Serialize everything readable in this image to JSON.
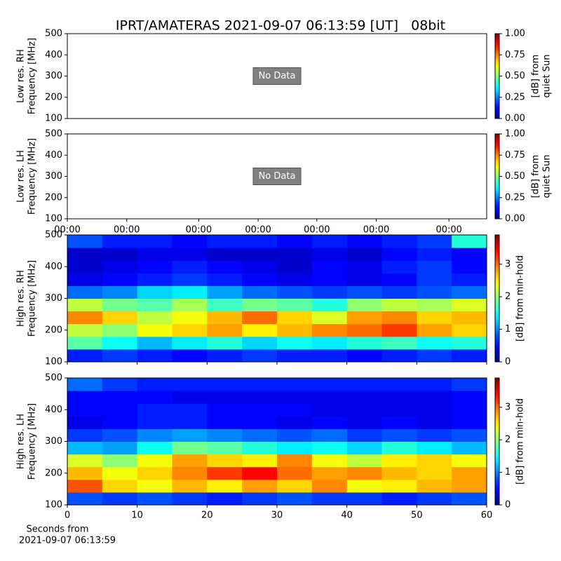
{
  "title": "IPRT/AMATERAS 2021-09-07 06:13:59 [UT]   08bit",
  "xlabel": [
    "Seconds from",
    "2021-09-07 06:13:59"
  ],
  "chart_data": [
    {
      "type": "empty",
      "ylabel": [
        "Low res. RH",
        "Frequency [MHz]"
      ],
      "annotation": "No Data",
      "ylim": [
        100,
        500
      ],
      "yticks": [
        100,
        200,
        300,
        400,
        500
      ],
      "colorbar": {
        "label": [
          "[dB] from",
          "quiet Sun"
        ],
        "colormap": "jet",
        "lim": [
          0,
          1
        ],
        "ticks": [
          {
            "value": 0,
            "label": "0.00"
          },
          {
            "value": 0.25,
            "label": "0.25"
          },
          {
            "value": 0.5,
            "label": "0.50"
          },
          {
            "value": 0.75,
            "label": "0.75"
          },
          {
            "value": 1,
            "label": "1.00"
          }
        ]
      }
    },
    {
      "type": "empty",
      "ylabel": [
        "Low res. LH",
        "Frequency [MHz]"
      ],
      "annotation": "No Data",
      "ylim": [
        100,
        500
      ],
      "yticks": [
        100,
        200,
        300,
        400,
        500
      ],
      "xlim": [
        0,
        60
      ],
      "xticks": [
        {
          "value": 0,
          "label": "00:00"
        },
        {
          "value": 8.5,
          "label": "00:00"
        },
        {
          "value": 18.8,
          "label": "00:00"
        },
        {
          "value": 27.3,
          "label": "00:00"
        },
        {
          "value": 35.7,
          "label": "00:00"
        },
        {
          "value": 44.2,
          "label": "00:00"
        },
        {
          "value": 54.6,
          "label": "00:00"
        }
      ],
      "colorbar": {
        "label": [
          "[dB] from",
          "quiet Sun"
        ],
        "colormap": "jet",
        "lim": [
          0,
          1
        ],
        "ticks": [
          {
            "value": 0,
            "label": "0.00"
          },
          {
            "value": 0.25,
            "label": "0.25"
          },
          {
            "value": 0.5,
            "label": "0.50"
          },
          {
            "value": 0.75,
            "label": "0.75"
          },
          {
            "value": 1,
            "label": "1.00"
          }
        ]
      }
    },
    {
      "type": "heatmap",
      "ylabel": [
        "High res. RH",
        "Frequency [MHz]"
      ],
      "xlim": [
        0,
        60
      ],
      "xticks": [
        0,
        10,
        20,
        30,
        40,
        50,
        60
      ],
      "xticklabels": false,
      "ylim": [
        100,
        500
      ],
      "yticks": [
        100,
        200,
        300,
        400,
        500
      ],
      "colorbar": {
        "label": [
          "[dB] from min-hold"
        ],
        "colormap": "jet",
        "lim": [
          0,
          3.9
        ],
        "ticks": [
          0,
          1,
          2,
          3
        ]
      },
      "z": [
        [
          0.6,
          0.7,
          0.6,
          0.5,
          0.6,
          0.7,
          0.6,
          0.6,
          0.5,
          0.6,
          0.7,
          0.6
        ],
        [
          1.8,
          1.5,
          1.2,
          1.4,
          1.6,
          1.3,
          1.5,
          1.4,
          1.6,
          1.7,
          1.5,
          1.6
        ],
        [
          2.2,
          2.0,
          2.4,
          2.6,
          2.8,
          2.5,
          2.7,
          2.9,
          3.0,
          3.2,
          2.8,
          2.6
        ],
        [
          2.9,
          2.6,
          2.2,
          2.4,
          2.7,
          3.0,
          2.6,
          2.3,
          2.8,
          2.9,
          2.6,
          2.7
        ],
        [
          2.2,
          1.9,
          1.8,
          2.1,
          1.7,
          1.9,
          1.8,
          1.6,
          2.0,
          2.2,
          2.1,
          2.3
        ],
        [
          0.9,
          1.0,
          1.3,
          1.4,
          1.1,
          0.9,
          0.8,
          0.7,
          0.8,
          0.7,
          0.8,
          0.9
        ],
        [
          0.4,
          0.5,
          0.6,
          0.7,
          0.6,
          0.5,
          0.4,
          0.5,
          0.4,
          0.5,
          0.7,
          0.6
        ],
        [
          0.3,
          0.4,
          0.5,
          0.6,
          0.5,
          0.4,
          0.3,
          0.5,
          0.4,
          0.6,
          0.7,
          0.5
        ],
        [
          0.3,
          0.3,
          0.4,
          0.4,
          0.3,
          0.3,
          0.3,
          0.4,
          0.3,
          0.5,
          0.6,
          0.5
        ],
        [
          0.8,
          0.6,
          0.6,
          0.5,
          0.6,
          0.6,
          0.5,
          0.6,
          0.5,
          0.6,
          0.7,
          1.6
        ]
      ]
    },
    {
      "type": "heatmap",
      "ylabel": [
        "High res. LH",
        "Frequency [MHz]"
      ],
      "xlim": [
        0,
        60
      ],
      "xticks": [
        0,
        10,
        20,
        30,
        40,
        50,
        60
      ],
      "xticklabels": true,
      "ylim": [
        100,
        500
      ],
      "yticks": [
        100,
        200,
        300,
        400,
        500
      ],
      "colorbar": {
        "label": [
          "[dB] from min-hold"
        ],
        "colormap": "jet",
        "lim": [
          0,
          3.9
        ],
        "ticks": [
          0,
          1,
          2,
          3
        ]
      },
      "z": [
        [
          0.8,
          0.7,
          0.8,
          0.7,
          0.6,
          0.7,
          0.8,
          0.7,
          0.7,
          0.6,
          0.7,
          0.8
        ],
        [
          3.1,
          2.6,
          2.4,
          2.7,
          2.5,
          2.8,
          2.6,
          2.9,
          2.4,
          2.5,
          2.7,
          2.8
        ],
        [
          2.7,
          2.4,
          2.6,
          2.9,
          3.2,
          3.4,
          3.0,
          2.8,
          2.9,
          2.7,
          2.6,
          2.8
        ],
        [
          2.3,
          2.0,
          2.4,
          2.8,
          2.6,
          2.5,
          2.9,
          2.4,
          2.2,
          2.5,
          2.6,
          2.4
        ],
        [
          1.2,
          1.1,
          1.5,
          1.9,
          1.8,
          1.6,
          1.4,
          1.5,
          1.3,
          1.6,
          1.4,
          1.2
        ],
        [
          0.7,
          0.8,
          1.0,
          1.1,
          1.0,
          0.9,
          0.8,
          0.9,
          0.7,
          0.8,
          0.7,
          0.8
        ],
        [
          0.4,
          0.5,
          0.6,
          0.6,
          0.5,
          0.5,
          0.4,
          0.5,
          0.4,
          0.5,
          0.4,
          0.5
        ],
        [
          0.5,
          0.5,
          0.6,
          0.6,
          0.5,
          0.5,
          0.5,
          0.4,
          0.4,
          0.4,
          0.4,
          0.5
        ],
        [
          0.5,
          0.5,
          0.5,
          0.4,
          0.4,
          0.4,
          0.4,
          0.4,
          0.4,
          0.4,
          0.4,
          0.5
        ],
        [
          0.9,
          0.7,
          0.6,
          0.6,
          0.6,
          0.6,
          0.6,
          0.6,
          0.6,
          0.6,
          0.6,
          0.7
        ]
      ]
    }
  ]
}
